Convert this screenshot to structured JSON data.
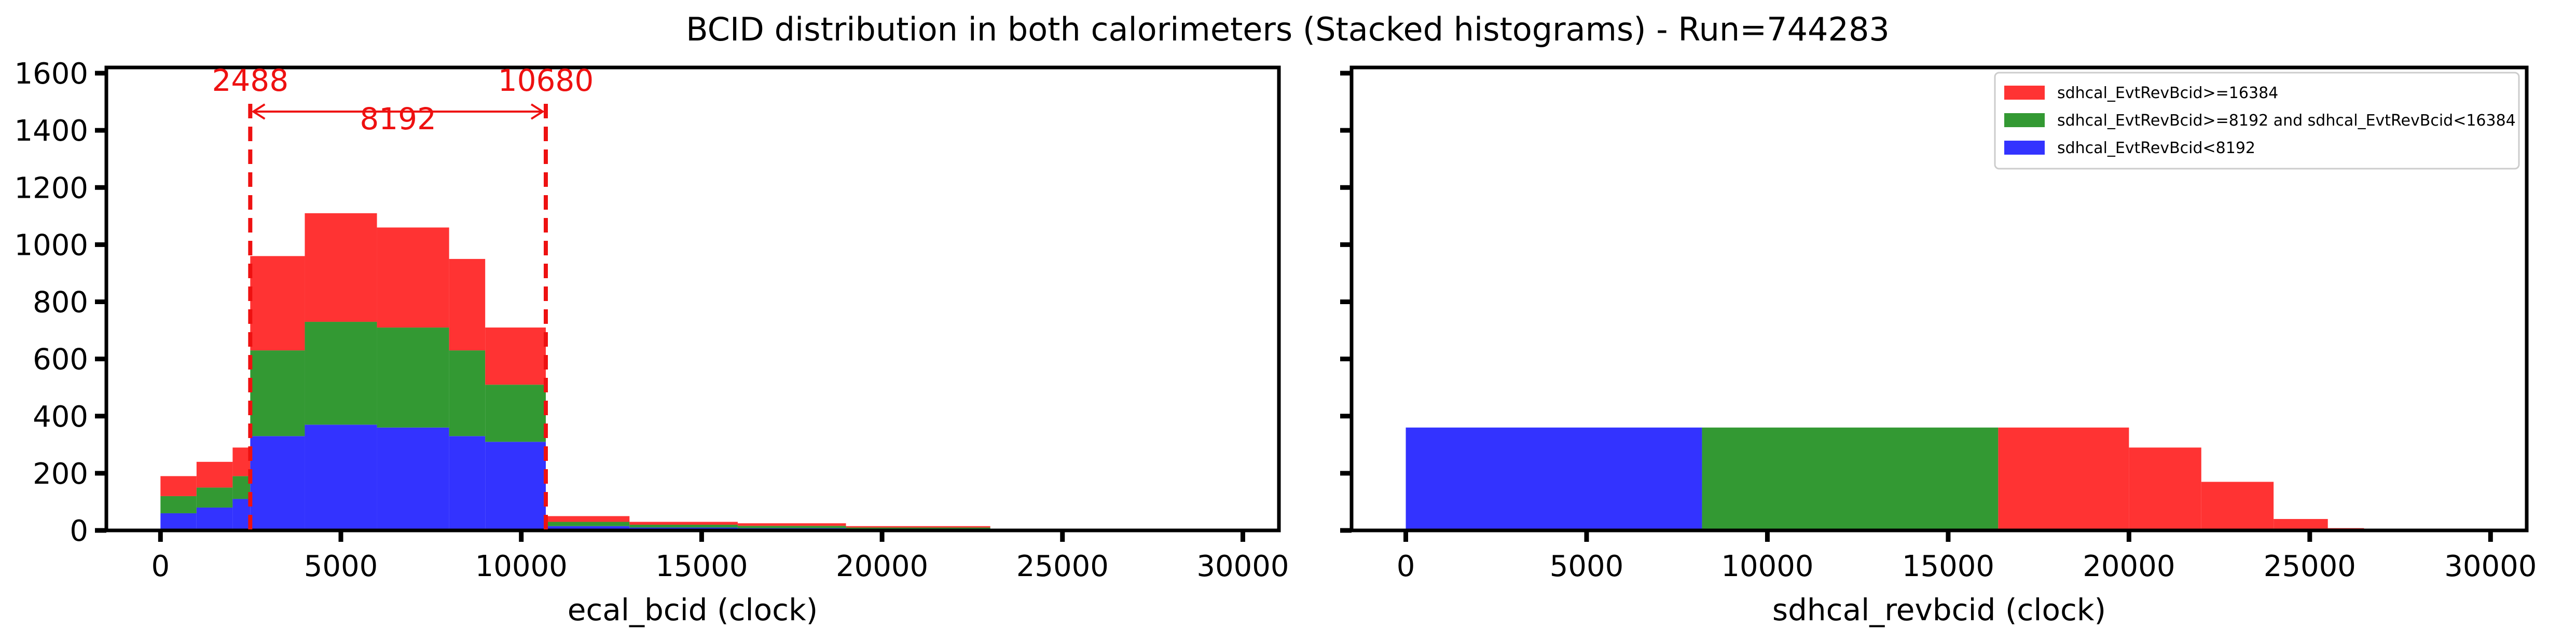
{
  "figure_title": "BCID distribution in both calorimeters (Stacked histograms) - Run=744283",
  "chart_data": [
    {
      "type": "bar",
      "stacked": true,
      "xlabel": "ecal_bcid (clock)",
      "ylabel": "",
      "xlim": [
        -1500,
        31000
      ],
      "ylim": [
        0,
        1620
      ],
      "xticks": [
        0,
        5000,
        10000,
        15000,
        20000,
        25000,
        30000
      ],
      "yticks": [
        0,
        200,
        400,
        600,
        800,
        1000,
        1200,
        1400,
        1600
      ],
      "bin_edges": [
        0,
        1000,
        2000,
        2488,
        4000,
        6000,
        8000,
        9000,
        10680,
        13000,
        16000,
        19000,
        23000,
        26000
      ],
      "series": [
        {
          "name": "sdhcal_EvtRevBcid<8192",
          "color": "#3333ff",
          "values": [
            60,
            80,
            110,
            330,
            370,
            360,
            330,
            310,
            15,
            10,
            8,
            5,
            2
          ]
        },
        {
          "name": "sdhcal_EvtRevBcid>=8192 and sdhcal_EvtRevBcid<16384",
          "color": "#339933",
          "values": [
            60,
            70,
            80,
            300,
            360,
            350,
            300,
            200,
            15,
            10,
            8,
            5,
            2
          ]
        },
        {
          "name": "sdhcal_EvtRevBcid>=16384",
          "color": "#ff3333",
          "values": [
            70,
            90,
            100,
            330,
            380,
            350,
            320,
            200,
            20,
            10,
            9,
            5,
            2
          ]
        }
      ],
      "annotations": {
        "left_line": {
          "x": 2488,
          "label": "2488"
        },
        "right_line": {
          "x": 10680,
          "label": "10680"
        },
        "span_label": "8192",
        "color": "#ee1111"
      }
    },
    {
      "type": "bar",
      "stacked": true,
      "xlabel": "sdhcal_revbcid (clock)",
      "ylabel": "",
      "xlim": [
        -1500,
        31000
      ],
      "ylim": [
        0,
        1620
      ],
      "xticks": [
        0,
        5000,
        10000,
        15000,
        20000,
        25000,
        30000
      ],
      "yticks": [
        0,
        200,
        400,
        600,
        800,
        1000,
        1200,
        1400,
        1600
      ],
      "bin_edges": [
        0,
        8192,
        16384,
        20000,
        22000,
        24000,
        25500,
        26500
      ],
      "series": [
        {
          "name": "sdhcal_EvtRevBcid<8192",
          "color": "#3333ff",
          "values": [
            360,
            0,
            0,
            0,
            0,
            0,
            0
          ]
        },
        {
          "name": "sdhcal_EvtRevBcid>=8192 and sdhcal_EvtRevBcid<16384",
          "color": "#339933",
          "values": [
            0,
            360,
            0,
            0,
            0,
            0,
            0
          ]
        },
        {
          "name": "sdhcal_EvtRevBcid>=16384",
          "color": "#ff3333",
          "values": [
            0,
            0,
            360,
            290,
            170,
            40,
            8
          ]
        }
      ],
      "legend": {
        "position": "top-right",
        "entries": [
          {
            "label": "sdhcal_EvtRevBcid>=16384",
            "color": "#ff3333"
          },
          {
            "label": "sdhcal_EvtRevBcid>=8192 and sdhcal_EvtRevBcid<16384",
            "color": "#339933"
          },
          {
            "label": "sdhcal_EvtRevBcid<8192",
            "color": "#3333ff"
          }
        ]
      }
    }
  ]
}
